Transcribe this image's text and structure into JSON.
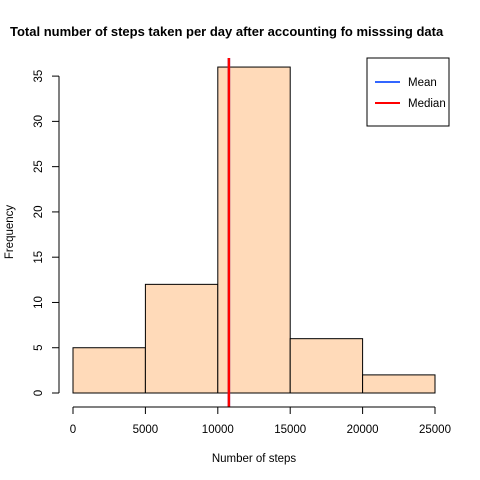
{
  "chart_data": {
    "type": "bar",
    "title": "Total number of steps taken per day after accounting fo misssing data",
    "xlabel": "Number of steps",
    "ylabel": "Frequency",
    "bins": [
      {
        "start": 0,
        "end": 5000,
        "count": 5
      },
      {
        "start": 5000,
        "end": 10000,
        "count": 12
      },
      {
        "start": 10000,
        "end": 15000,
        "count": 36
      },
      {
        "start": 15000,
        "end": 20000,
        "count": 6
      },
      {
        "start": 20000,
        "end": 25000,
        "count": 2
      }
    ],
    "xlim": [
      0,
      25000
    ],
    "ylim": [
      0,
      37
    ],
    "x_ticks": [
      0,
      5000,
      10000,
      15000,
      20000,
      25000
    ],
    "y_ticks": [
      0,
      5,
      10,
      15,
      20,
      25,
      30,
      35
    ],
    "bar_color": "#ffdab9",
    "grid": false,
    "lines": [
      {
        "name": "Mean",
        "x": 10766,
        "color": "#3366ff"
      },
      {
        "name": "Median",
        "x": 10766,
        "color": "#ff0000"
      }
    ],
    "legend": {
      "position": "top-right",
      "entries": [
        {
          "label": "Mean",
          "color": "#3366ff"
        },
        {
          "label": "Median",
          "color": "#ff0000"
        }
      ]
    }
  }
}
